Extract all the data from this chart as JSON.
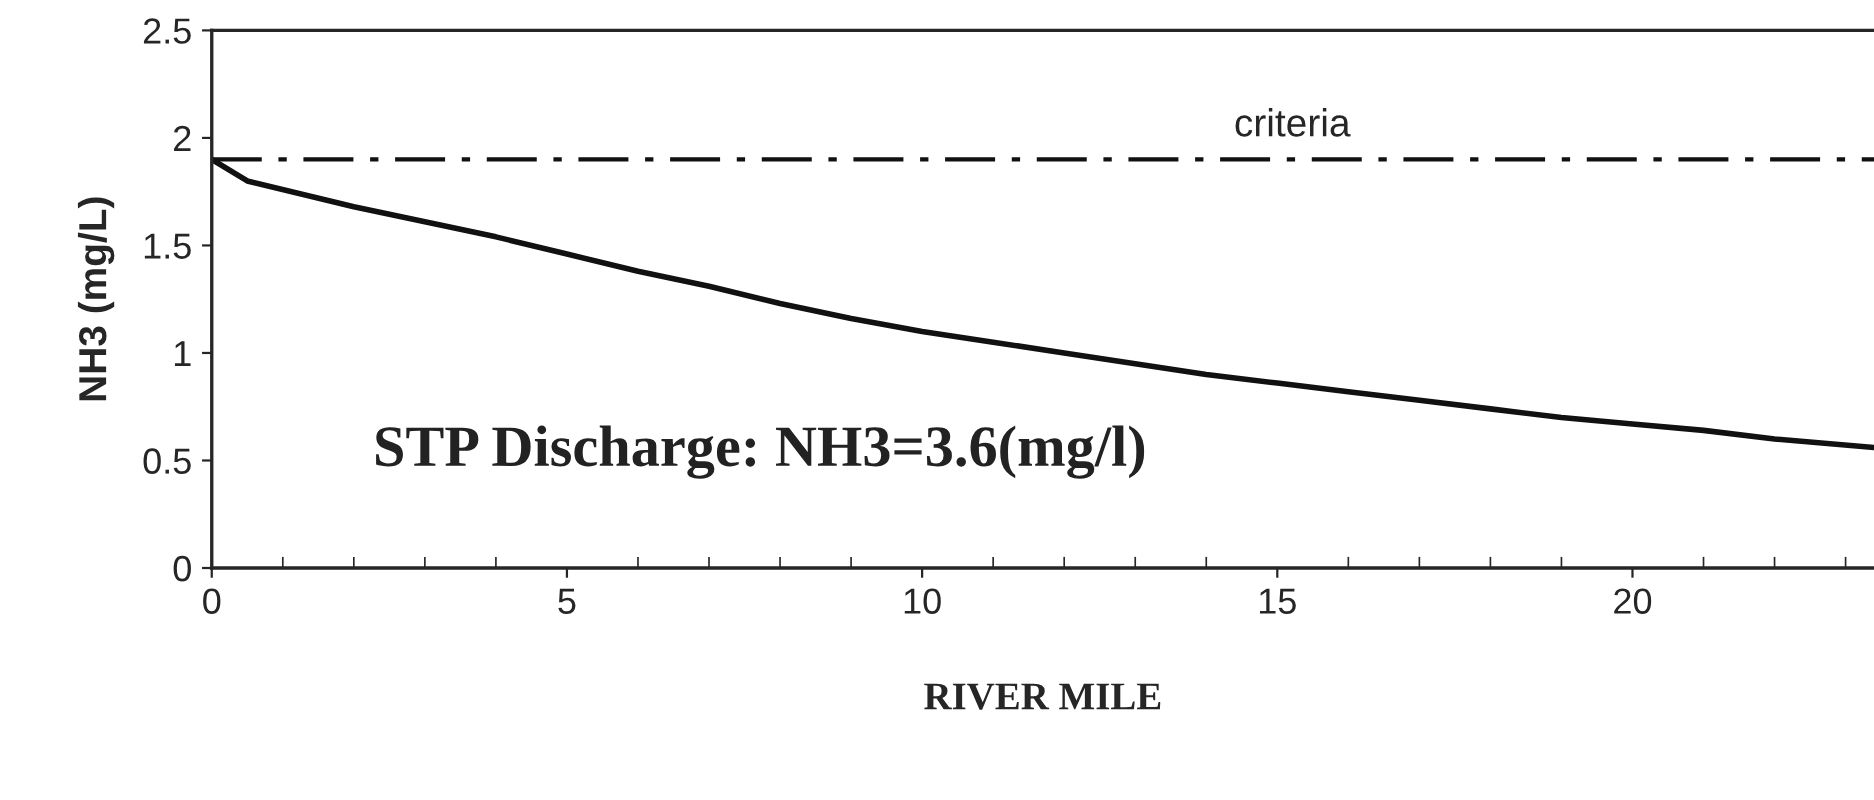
{
  "chart_data": {
    "type": "line",
    "xlabel": "RIVER MILE",
    "ylabel": "NH3 (mg/L)",
    "series": [
      {
        "color": "#111111",
        "x": [
          0,
          0.5,
          2,
          3,
          4,
          5,
          6,
          7,
          8,
          9,
          10,
          11,
          12,
          13,
          14,
          15,
          16,
          17,
          18,
          19,
          20,
          21,
          22,
          23.4
        ],
        "values": [
          1.9,
          1.8,
          1.68,
          1.61,
          1.54,
          1.46,
          1.38,
          1.31,
          1.23,
          1.16,
          1.1,
          1.05,
          1.0,
          0.95,
          0.9,
          0.86,
          0.82,
          0.78,
          0.74,
          0.7,
          0.67,
          0.64,
          0.6,
          0.56
        ]
      }
    ],
    "xlim": [
      0,
      23.4
    ],
    "xticks": [
      0,
      5,
      10,
      15,
      20
    ],
    "ylim": [
      0,
      2.5
    ],
    "yticks": [
      0,
      0.5,
      1,
      1.5,
      2,
      2.5
    ],
    "ref_lines": [
      {
        "axis": "y",
        "value": 1.9,
        "label": "criteria",
        "color": "#111111",
        "line_style": "dashdot"
      }
    ],
    "annotations": [
      "STP Discharge: NH3=3.6(mg/l)"
    ],
    "grid": false,
    "legend": false,
    "marker": "none",
    "line_style": "solid"
  }
}
